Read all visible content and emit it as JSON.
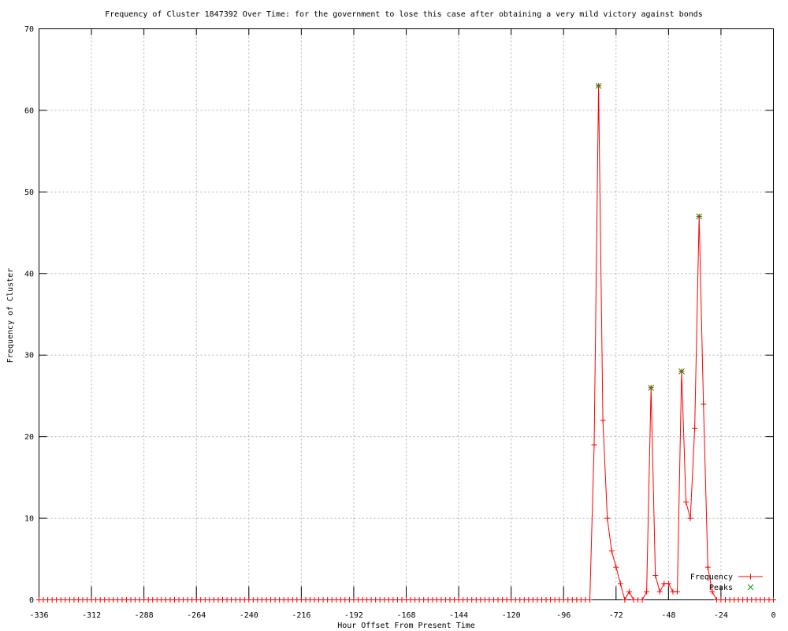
{
  "chart_data": {
    "type": "line",
    "title": "Frequency of Cluster 1847392 Over Time: for the government to lose this case after obtaining a very mild victory against bonds",
    "xlabel": "Hour Offset From Present Time",
    "ylabel": "Frequency of Cluster",
    "xlim": [
      -336,
      0
    ],
    "ylim": [
      0,
      70
    ],
    "xticks": [
      -336,
      -312,
      -288,
      -264,
      -240,
      -216,
      -192,
      -168,
      -144,
      -120,
      -96,
      -72,
      -48,
      -24,
      0
    ],
    "yticks": [
      0,
      10,
      20,
      30,
      40,
      50,
      60,
      70
    ],
    "grid": true,
    "grid_style": "dashed",
    "x_step_hours": 2,
    "colors": {
      "frequency_line": "#ff0000",
      "peaks_marker": "#00a000",
      "grid": "#b0b0b0",
      "border": "#000000"
    },
    "series": [
      {
        "name": "Frequency",
        "style": "linespoints",
        "marker": "plus",
        "color": "#ff0000",
        "baseline_value": 0,
        "nonzero_points": [
          [
            -82,
            19
          ],
          [
            -80,
            63
          ],
          [
            -78,
            22
          ],
          [
            -76,
            10
          ],
          [
            -74,
            6
          ],
          [
            -72,
            4
          ],
          [
            -70,
            2
          ],
          [
            -66,
            1
          ],
          [
            -58,
            1
          ],
          [
            -56,
            26
          ],
          [
            -54,
            3
          ],
          [
            -52,
            1
          ],
          [
            -50,
            2
          ],
          [
            -48,
            2
          ],
          [
            -46,
            1
          ],
          [
            -44,
            1
          ],
          [
            -42,
            28
          ],
          [
            -40,
            12
          ],
          [
            -38,
            10
          ],
          [
            -36,
            21
          ],
          [
            -34,
            47
          ],
          [
            -32,
            24
          ],
          [
            -30,
            4
          ],
          [
            -28,
            1
          ]
        ]
      },
      {
        "name": "Peaks",
        "style": "points",
        "marker": "cross",
        "color": "#00a000",
        "points": [
          [
            -80,
            63
          ],
          [
            -56,
            26
          ],
          [
            -42,
            28
          ],
          [
            -34,
            47
          ]
        ]
      }
    ],
    "legend": {
      "position": "bottom-right",
      "entries": [
        "Frequency",
        "Peaks"
      ]
    }
  }
}
